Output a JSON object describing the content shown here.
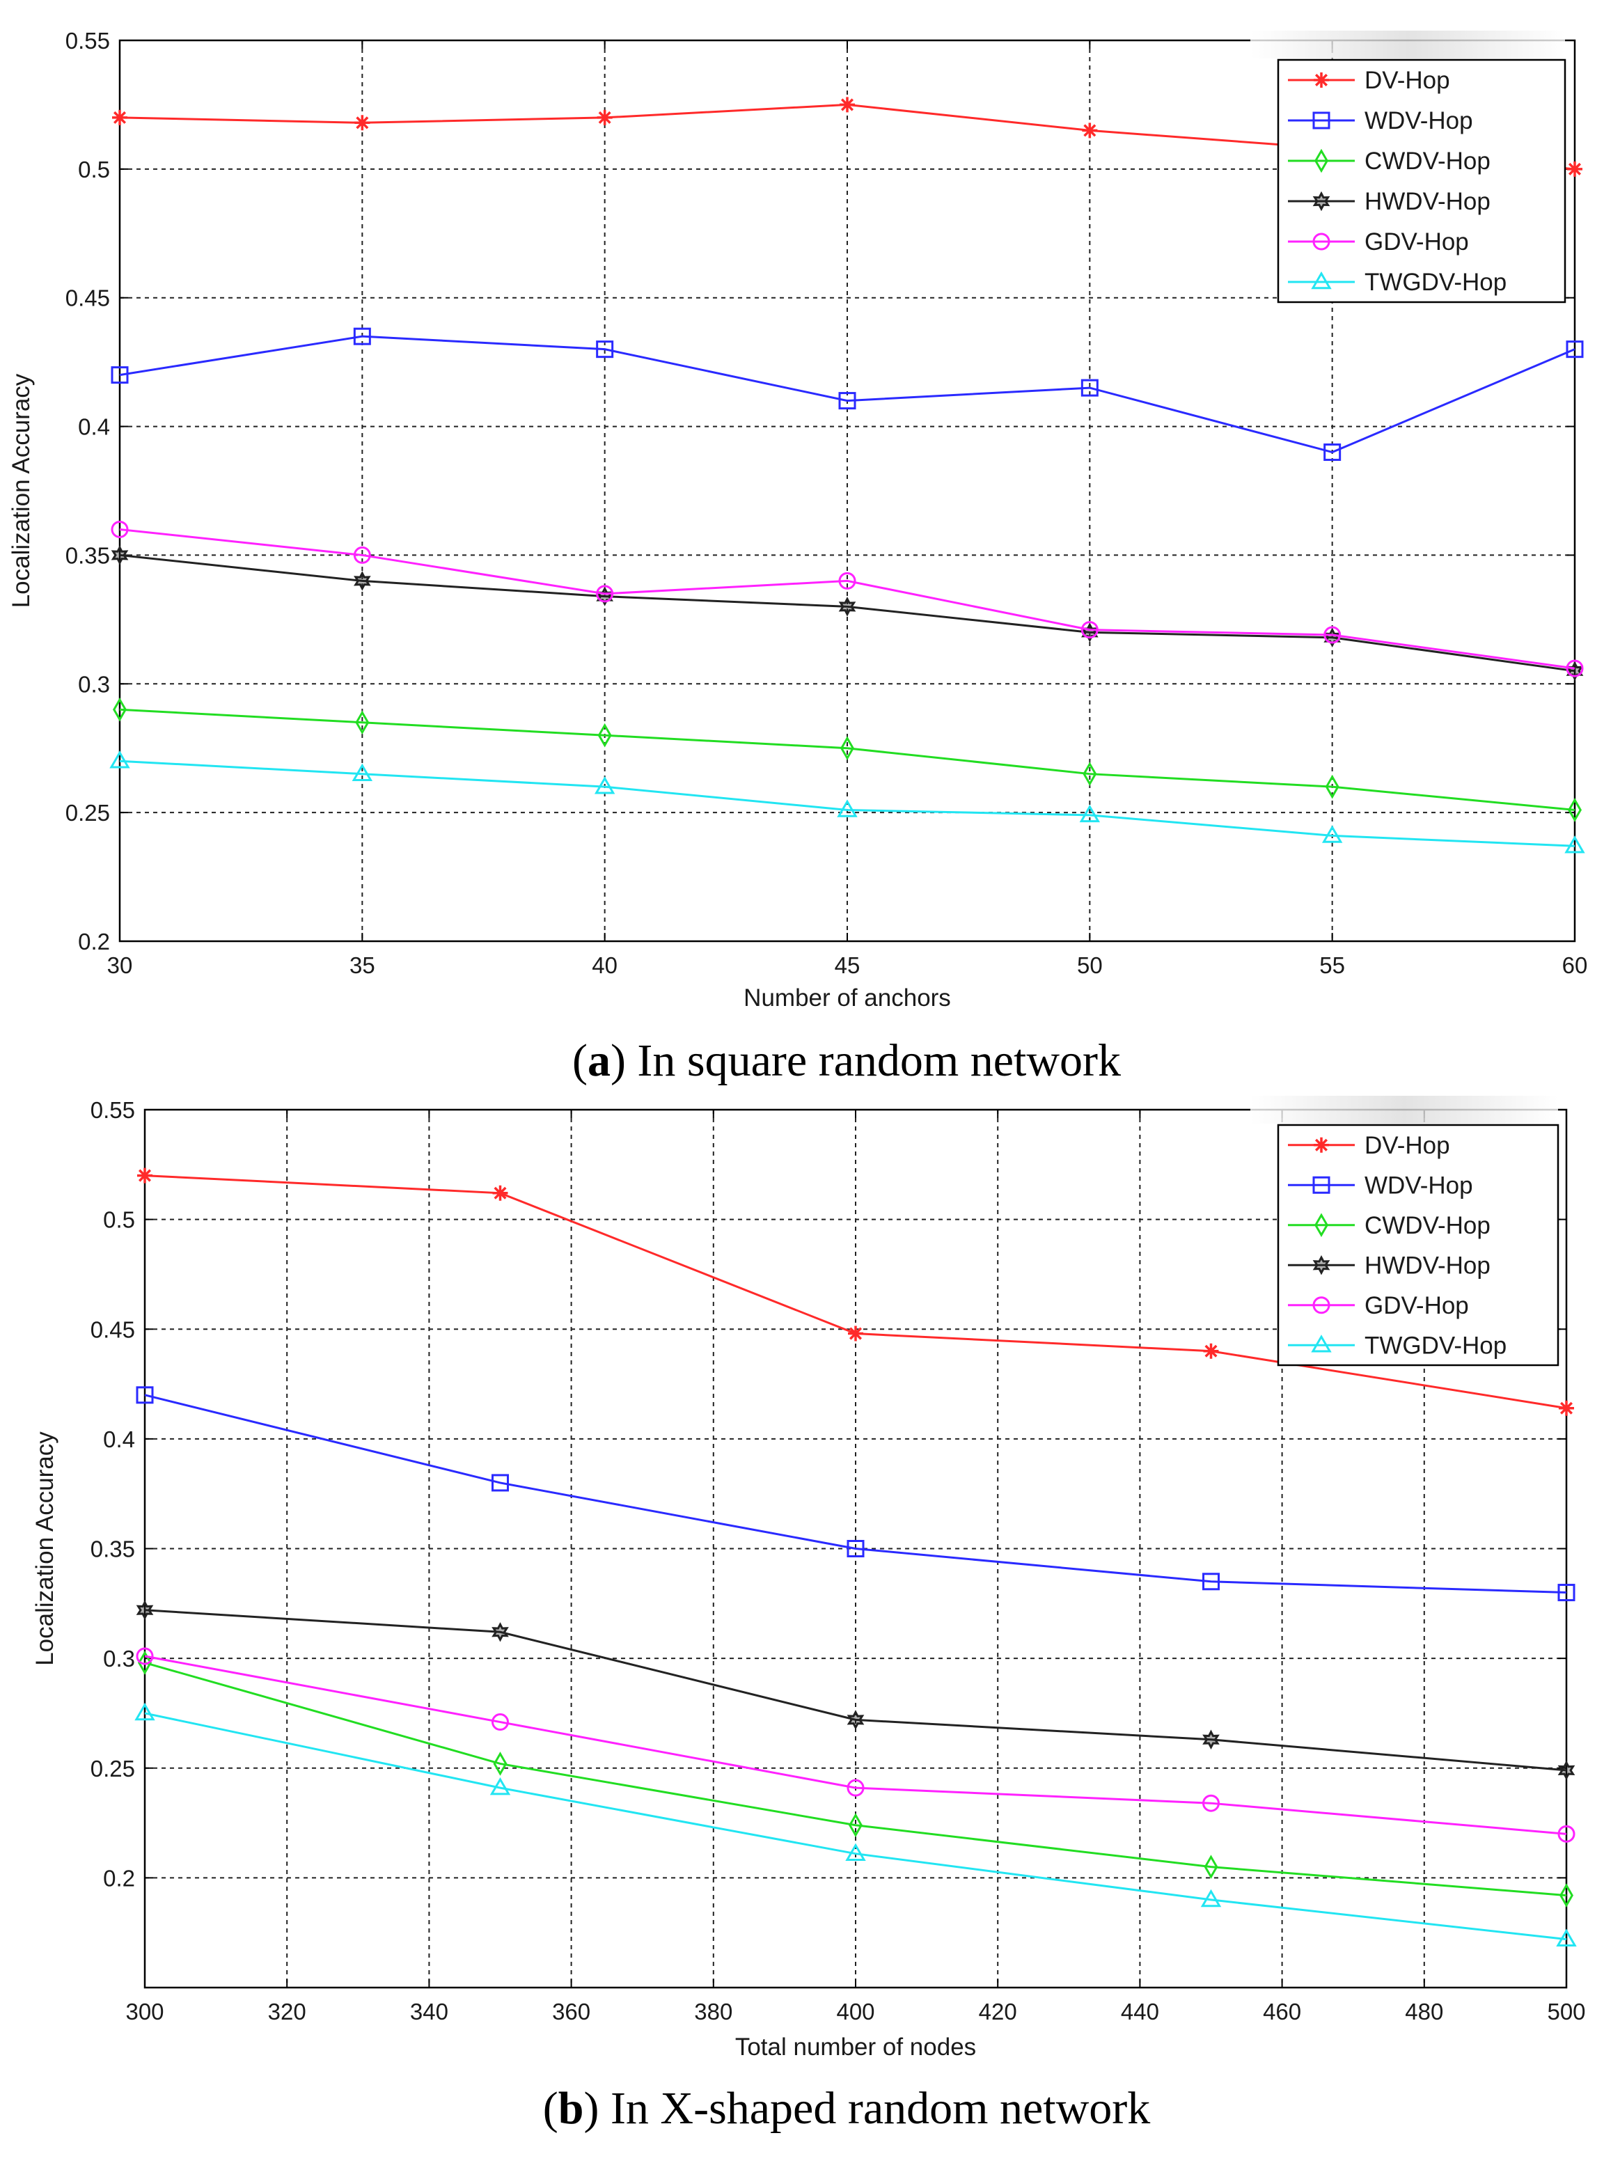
{
  "chart_data": [
    {
      "type": "line",
      "caption": {
        "open": "(",
        "letter": "a",
        "rest": ") In square random network"
      },
      "xlabel": "Number of anchors",
      "ylabel": "Localization Accuracy",
      "xlim": [
        30,
        60
      ],
      "ylim": [
        0.2,
        0.55
      ],
      "xticks": [
        30,
        35,
        40,
        45,
        50,
        55,
        60
      ],
      "yticks": [
        0.2,
        0.25,
        0.3,
        0.35,
        0.4,
        0.45,
        0.5,
        0.55
      ],
      "grid": true,
      "legend_position": "top-right",
      "x": [
        30,
        35,
        40,
        45,
        50,
        55,
        60
      ],
      "series": [
        {
          "name": "DV-Hop",
          "color": "#ff2a2a",
          "marker": "star",
          "values": [
            0.52,
            0.518,
            0.52,
            0.525,
            0.515,
            0.508,
            0.5
          ]
        },
        {
          "name": "WDV-Hop",
          "color": "#2a2aff",
          "marker": "square",
          "values": [
            0.42,
            0.435,
            0.43,
            0.41,
            0.415,
            0.39,
            0.43
          ]
        },
        {
          "name": "CWDV-Hop",
          "color": "#22dd22",
          "marker": "diamond",
          "values": [
            0.29,
            0.285,
            0.28,
            0.275,
            0.265,
            0.26,
            0.251
          ]
        },
        {
          "name": "HWDV-Hop",
          "color": "#222222",
          "marker": "hexagram",
          "values": [
            0.35,
            0.34,
            0.334,
            0.33,
            0.32,
            0.318,
            0.305
          ]
        },
        {
          "name": "GDV-Hop",
          "color": "#ff22ff",
          "marker": "circle",
          "values": [
            0.36,
            0.35,
            0.335,
            0.34,
            0.321,
            0.319,
            0.306
          ]
        },
        {
          "name": "TWGDV-Hop",
          "color": "#22e5f2",
          "marker": "triangle",
          "values": [
            0.27,
            0.265,
            0.26,
            0.251,
            0.249,
            0.241,
            0.237
          ]
        }
      ]
    },
    {
      "type": "line",
      "caption": {
        "open": "(",
        "letter": "b",
        "rest": ") In X-shaped random network"
      },
      "xlabel": "Total number of nodes",
      "ylabel": "Localization Accuracy",
      "xlim": [
        300,
        500
      ],
      "ylim": [
        0.15,
        0.55
      ],
      "xticks": [
        300,
        320,
        340,
        360,
        380,
        400,
        420,
        440,
        460,
        480,
        500
      ],
      "yticks": [
        0.2,
        0.25,
        0.3,
        0.35,
        0.4,
        0.45,
        0.5,
        0.55
      ],
      "grid": true,
      "legend_position": "top-right",
      "x": [
        300,
        350,
        400,
        450,
        500
      ],
      "series": [
        {
          "name": "DV-Hop",
          "color": "#ff2a2a",
          "marker": "star",
          "values": [
            0.52,
            0.512,
            0.448,
            0.44,
            0.414
          ]
        },
        {
          "name": "WDV-Hop",
          "color": "#2a2aff",
          "marker": "square",
          "values": [
            0.42,
            0.38,
            0.35,
            0.335,
            0.33
          ]
        },
        {
          "name": "CWDV-Hop",
          "color": "#22dd22",
          "marker": "diamond",
          "values": [
            0.298,
            0.252,
            0.224,
            0.205,
            0.192
          ]
        },
        {
          "name": "HWDV-Hop",
          "color": "#222222",
          "marker": "hexagram",
          "values": [
            0.322,
            0.312,
            0.272,
            0.263,
            0.249
          ]
        },
        {
          "name": "GDV-Hop",
          "color": "#ff22ff",
          "marker": "circle",
          "values": [
            0.301,
            0.271,
            0.241,
            0.234,
            0.22
          ]
        },
        {
          "name": "TWGDV-Hop",
          "color": "#22e5f2",
          "marker": "triangle",
          "values": [
            0.275,
            0.241,
            0.211,
            0.19,
            0.172
          ]
        }
      ]
    }
  ]
}
